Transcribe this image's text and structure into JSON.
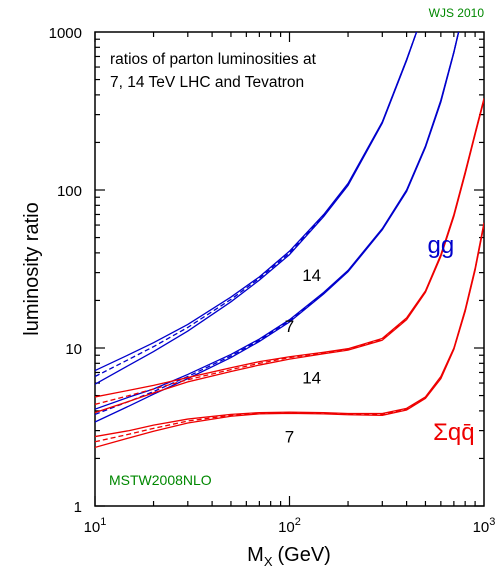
{
  "credit": "WJS 2010",
  "chart_data": {
    "type": "line",
    "title": "ratios of parton luminosities at\n7, 14 TeV LHC and Tevatron",
    "xlabel_main": "M",
    "xlabel_sub": "X",
    "xlabel_unit": "(GeV)",
    "ylabel": "luminosity ratio",
    "xscale": "log",
    "yscale": "log",
    "xlim": [
      10,
      1000
    ],
    "ylim": [
      1,
      1000
    ],
    "x_ticks": [
      {
        "value": 10,
        "base": "10",
        "exp": "1"
      },
      {
        "value": 100,
        "base": "10",
        "exp": "2"
      },
      {
        "value": 1000,
        "base": "10",
        "exp": "3"
      }
    ],
    "y_ticks": [
      {
        "value": 1,
        "label": "1"
      },
      {
        "value": 10,
        "label": "10"
      },
      {
        "value": 100,
        "label": "100"
      },
      {
        "value": 1000,
        "label": "1000"
      }
    ],
    "pdf_label": "MSTW2008NLO",
    "group_labels": [
      {
        "text": "gg",
        "x": 600,
        "y": 45,
        "color": "#0000cc"
      },
      {
        "text": "Σqq̄",
        "x": 700,
        "y": 2.95,
        "color": "#ee0000"
      }
    ],
    "energy_labels": [
      {
        "text": "14",
        "x": 130,
        "y": 29
      },
      {
        "text": "7",
        "x": 100,
        "y": 13.8
      },
      {
        "text": "14",
        "x": 130,
        "y": 6.5
      },
      {
        "text": "7",
        "x": 100,
        "y": 2.75
      }
    ],
    "series": [
      {
        "name": "gg 14",
        "color": "#0000cc",
        "x": [
          10,
          15,
          20,
          30,
          50,
          70,
          100,
          150,
          200,
          300,
          400,
          450,
          500
        ],
        "upper": [
          7.2,
          9.1,
          10.8,
          14.1,
          21.0,
          28.2,
          41,
          70,
          110,
          270,
          670,
          1000,
          1500
        ],
        "central": [
          6.6,
          8.5,
          10.2,
          13.5,
          20.3,
          27.6,
          40,
          69,
          109,
          268,
          665,
          1000,
          1500
        ],
        "lower": [
          5.9,
          7.8,
          9.5,
          12.8,
          19.6,
          26.9,
          39,
          68,
          107,
          265,
          660,
          1000,
          1500
        ]
      },
      {
        "name": "gg 7",
        "color": "#0000cc",
        "x": [
          10,
          15,
          20,
          30,
          50,
          70,
          100,
          150,
          200,
          300,
          400,
          500,
          600,
          700,
          800
        ],
        "upper": [
          4.1,
          4.9,
          5.5,
          6.8,
          9.1,
          11.4,
          15.1,
          22.5,
          31,
          57,
          100,
          190,
          370,
          750,
          1500
        ],
        "central": [
          3.8,
          4.6,
          5.3,
          6.6,
          8.9,
          11.2,
          14.9,
          22.3,
          30.8,
          56.5,
          99,
          188,
          365,
          745,
          1500
        ],
        "lower": [
          3.4,
          4.3,
          5.1,
          6.4,
          8.7,
          11.0,
          14.6,
          22.0,
          30.4,
          56,
          98,
          186,
          360,
          740,
          1500
        ]
      },
      {
        "name": "qq 14",
        "color": "#ee0000",
        "x": [
          10,
          15,
          20,
          30,
          50,
          70,
          100,
          150,
          200,
          300,
          400,
          500,
          600,
          700,
          800,
          900,
          1000
        ],
        "upper": [
          4.9,
          5.4,
          5.8,
          6.5,
          7.5,
          8.2,
          8.8,
          9.4,
          9.9,
          11.5,
          15.5,
          23,
          39,
          70,
          130,
          230,
          380
        ],
        "central": [
          4.4,
          5.0,
          5.5,
          6.3,
          7.3,
          8.0,
          8.7,
          9.3,
          9.8,
          11.4,
          15.3,
          22.8,
          38.5,
          69,
          128,
          227,
          375
        ],
        "lower": [
          3.9,
          4.6,
          5.2,
          6.1,
          7.1,
          7.8,
          8.5,
          9.2,
          9.7,
          11.2,
          15.1,
          22.5,
          38,
          68,
          126,
          224,
          370
        ]
      },
      {
        "name": "qq 7",
        "color": "#ee0000",
        "x": [
          10,
          15,
          20,
          30,
          50,
          70,
          100,
          150,
          200,
          300,
          400,
          500,
          600,
          700,
          800,
          900,
          1000
        ],
        "upper": [
          2.75,
          3.0,
          3.25,
          3.55,
          3.8,
          3.9,
          3.93,
          3.9,
          3.85,
          3.85,
          4.15,
          4.9,
          6.6,
          10,
          17.5,
          32,
          62
        ],
        "central": [
          2.55,
          2.85,
          3.1,
          3.45,
          3.75,
          3.87,
          3.9,
          3.87,
          3.82,
          3.8,
          4.1,
          4.85,
          6.5,
          9.9,
          17.2,
          31.5,
          61
        ],
        "lower": [
          2.35,
          2.7,
          2.97,
          3.35,
          3.7,
          3.83,
          3.86,
          3.83,
          3.78,
          3.75,
          4.05,
          4.8,
          6.4,
          9.8,
          17.0,
          31,
          60
        ]
      }
    ]
  }
}
